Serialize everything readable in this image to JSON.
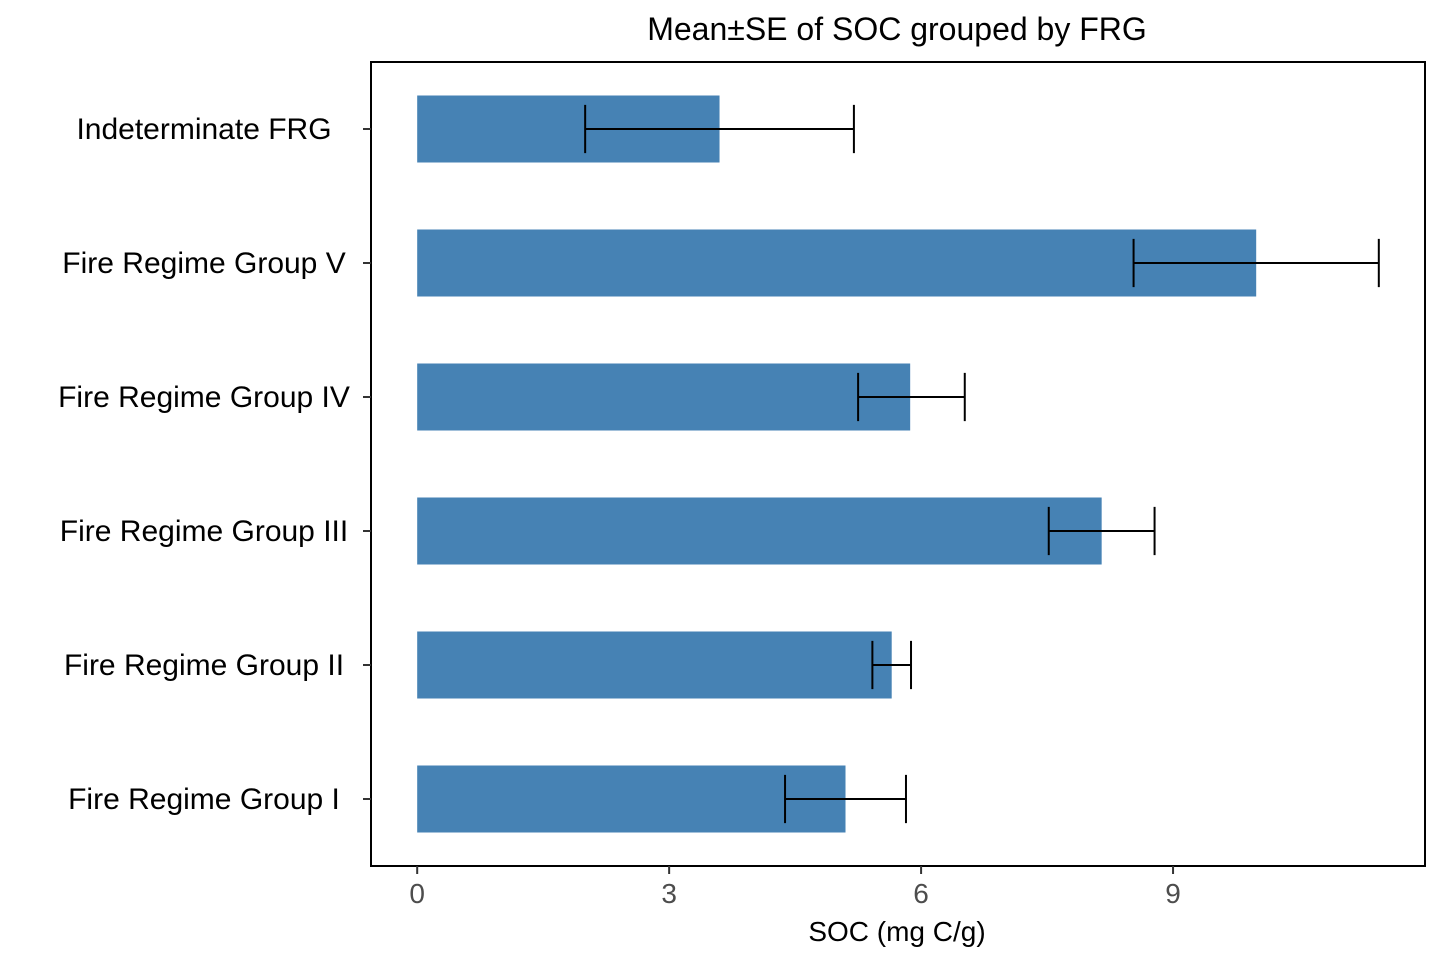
{
  "chart_data": {
    "type": "bar",
    "orientation": "horizontal",
    "title": "Mean±SE of SOC grouped by FRG",
    "xlabel": "SOC (mg C/g)",
    "ylabel": "",
    "categories": [
      "Fire Regime Group I",
      "Fire Regime Group II",
      "Fire Regime Group III",
      "Fire Regime Group IV",
      "Fire Regime Group V",
      "Indeterminate FRG"
    ],
    "values": [
      5.1,
      5.65,
      8.15,
      5.87,
      9.99,
      3.6
    ],
    "error_low": [
      4.38,
      5.42,
      7.52,
      5.25,
      8.53,
      2.0
    ],
    "error_high": [
      5.82,
      5.88,
      8.78,
      6.52,
      11.45,
      5.2
    ],
    "xlim": [
      -0.55,
      12.0
    ],
    "xticks": [
      0,
      3,
      6,
      9
    ],
    "xtick_labels": [
      "0",
      "3",
      "6",
      "9"
    ],
    "grid": false,
    "bar_color": "#4682b4",
    "error_color": "#000000"
  }
}
